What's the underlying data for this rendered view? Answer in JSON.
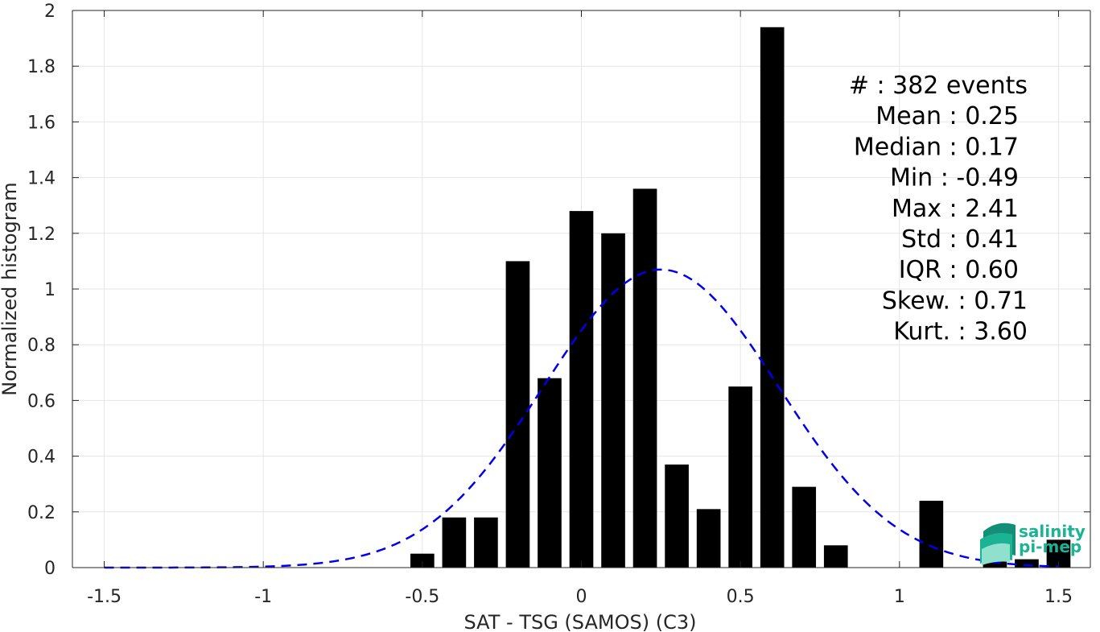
{
  "chart_data": {
    "type": "bar",
    "xlabel": "SAT - TSG (SAMOS) (C3)",
    "ylabel": "Normalized histogram",
    "xlim": [
      -1.6,
      1.6
    ],
    "ylim": [
      0,
      2
    ],
    "xticks": [
      -1.5,
      -1,
      -0.5,
      0,
      0.5,
      1,
      1.5
    ],
    "xtick_labels": [
      "-1.5",
      "-1",
      "-0.5",
      "0",
      "0.5",
      "1",
      "1.5"
    ],
    "yticks": [
      0,
      0.2,
      0.4,
      0.6,
      0.8,
      1,
      1.2,
      1.4,
      1.6,
      1.8,
      2
    ],
    "ytick_labels": [
      "0",
      "0.2",
      "0.4",
      "0.6",
      "0.8",
      "1",
      "1.2",
      "1.4",
      "1.6",
      "1.8",
      "2"
    ],
    "grid": true,
    "bar_width": 0.075,
    "bar_color": "#000000",
    "bars": [
      {
        "x": -0.5,
        "value": 0.05
      },
      {
        "x": -0.4,
        "value": 0.18
      },
      {
        "x": -0.3,
        "value": 0.18
      },
      {
        "x": -0.2,
        "value": 1.1
      },
      {
        "x": -0.1,
        "value": 0.68
      },
      {
        "x": 0.0,
        "value": 1.28
      },
      {
        "x": 0.1,
        "value": 1.2
      },
      {
        "x": 0.2,
        "value": 1.36
      },
      {
        "x": 0.3,
        "value": 0.37
      },
      {
        "x": 0.4,
        "value": 0.21
      },
      {
        "x": 0.5,
        "value": 0.65
      },
      {
        "x": 0.6,
        "value": 1.94
      },
      {
        "x": 0.7,
        "value": 0.29
      },
      {
        "x": 0.8,
        "value": 0.08
      },
      {
        "x": 1.1,
        "value": 0.24
      },
      {
        "x": 1.3,
        "value": 0.04
      },
      {
        "x": 1.4,
        "value": 0.03
      },
      {
        "x": 1.5,
        "value": 0.1
      }
    ],
    "fit_curve": {
      "type": "gaussian",
      "style": "dashed",
      "color": "#0000ee",
      "x_range": [
        -1.5,
        1.5
      ],
      "mean": 0.25,
      "std": 0.37,
      "peak": 1.07
    },
    "stats": [
      "#  : 382 events",
      "Mean : 0.25",
      "Median : 0.17",
      "Min : -0.49",
      "Max : 2.41",
      "Std : 0.41",
      "IQR : 0.60",
      "Skew. : 0.71",
      "Kurt. : 3.60"
    ]
  },
  "logo": {
    "line1": "salinity",
    "line2": "pi-mep"
  },
  "colors": {
    "grid": "#e6e6e6",
    "axis": "#262626",
    "logo": "#1bb394"
  }
}
